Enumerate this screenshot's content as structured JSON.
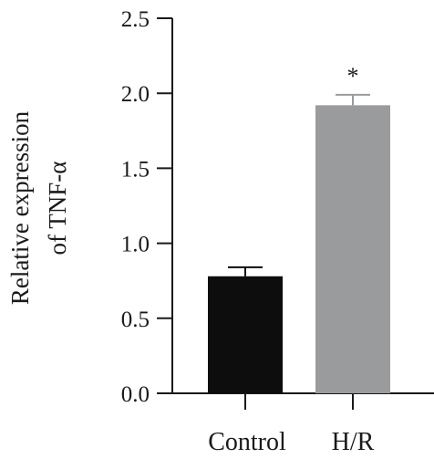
{
  "chart_data": {
    "type": "bar",
    "categories": [
      "Control",
      "H/R"
    ],
    "values": [
      0.78,
      1.92
    ],
    "errors": [
      0.06,
      0.07
    ],
    "significance": [
      "",
      "*"
    ],
    "bar_colors": [
      "#0d0d0d",
      "#9a9b9d"
    ],
    "ylabel_line1": "Relative expression",
    "ylabel_line2": "of TNF-α",
    "ylim": [
      0,
      2.5
    ],
    "yticks": [
      "0.0",
      "0.5",
      "1.0",
      "1.5",
      "2.0",
      "2.5"
    ],
    "grid": false,
    "legend": "none"
  }
}
